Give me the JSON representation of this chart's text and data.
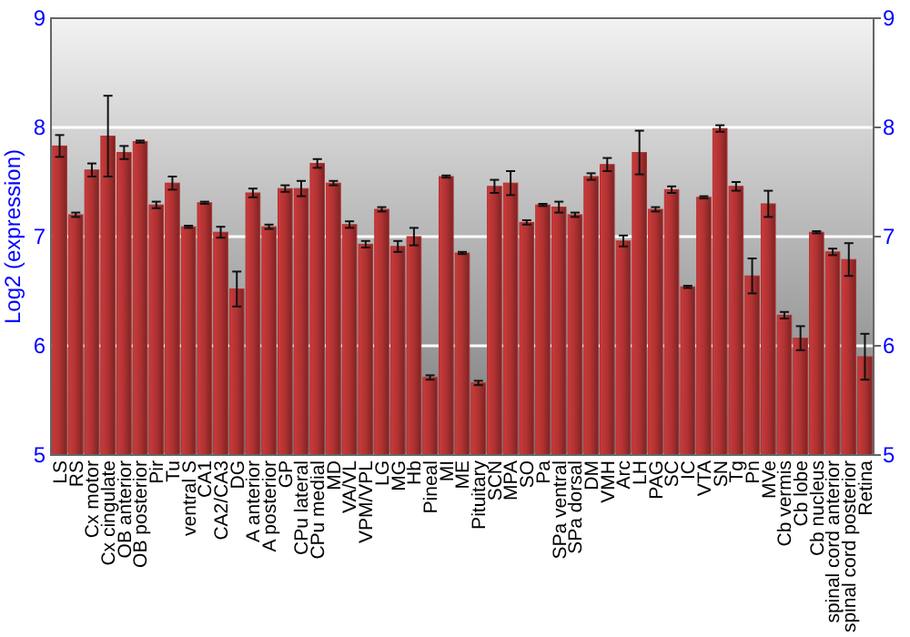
{
  "chart_data": {
    "type": "bar",
    "ylabel": "Log2 (expression)",
    "categories": [
      "LS",
      "RS",
      "Cx motor",
      "Cx cingulate",
      "OB anterior",
      "OB posterior",
      "Pir",
      "Tu",
      "ventral S",
      "CA1",
      "CA2/CA3",
      "DG",
      "A anterior",
      "A posterior",
      "GP",
      "CPu lateral",
      "CPu medial",
      "MD",
      "VA/VL",
      "VPM/VPL",
      "LG",
      "MG",
      "Hb",
      "Pineal",
      "MI",
      "ME",
      "Pituitary",
      "SCN",
      "MPA",
      "SO",
      "Pa",
      "SPa ventral",
      "SPa dorsal",
      "DM",
      "VMH",
      "Arc",
      "LH",
      "PAG",
      "SC",
      "IC",
      "VTA",
      "SN",
      "Tg",
      "Pn",
      "MVe",
      "Cb vermis",
      "Cb lobe",
      "Cb nucleus",
      "spinal cord anterior",
      "spinal cord posterior",
      "Retina"
    ],
    "values": [
      7.83,
      7.2,
      7.61,
      7.92,
      7.77,
      7.87,
      7.29,
      7.49,
      7.09,
      7.31,
      7.04,
      6.52,
      7.4,
      7.09,
      7.44,
      7.44,
      7.67,
      7.49,
      7.11,
      6.93,
      7.25,
      6.91,
      7.0,
      5.71,
      7.55,
      6.85,
      5.66,
      7.46,
      7.49,
      7.13,
      7.29,
      7.27,
      7.2,
      7.55,
      7.66,
      6.96,
      7.77,
      7.25,
      7.43,
      6.54,
      7.36,
      7.99,
      7.46,
      6.64,
      7.3,
      6.28,
      6.07,
      7.04,
      6.86,
      6.79,
      5.9
    ],
    "errors": [
      0.1,
      0.02,
      0.06,
      0.37,
      0.06,
      0.01,
      0.03,
      0.06,
      0.01,
      0.01,
      0.05,
      0.16,
      0.04,
      0.02,
      0.03,
      0.07,
      0.04,
      0.02,
      0.03,
      0.03,
      0.02,
      0.05,
      0.08,
      0.02,
      0.01,
      0.01,
      0.02,
      0.06,
      0.11,
      0.02,
      0.01,
      0.05,
      0.02,
      0.03,
      0.06,
      0.05,
      0.2,
      0.02,
      0.03,
      0.01,
      0.01,
      0.03,
      0.04,
      0.16,
      0.12,
      0.03,
      0.11,
      0.01,
      0.03,
      0.15,
      0.21
    ],
    "color": "#b03232",
    "ylim": [
      5,
      9
    ],
    "yticks": [
      5,
      6,
      7,
      8,
      9
    ],
    "y2lim": [
      5,
      9
    ],
    "y2ticks": [
      5,
      6,
      7,
      8,
      9
    ],
    "grid": "y"
  }
}
